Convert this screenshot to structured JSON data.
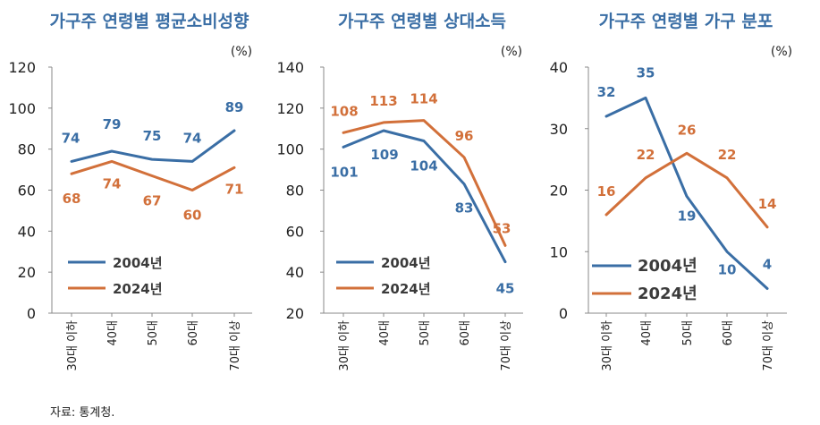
{
  "colors": {
    "series_2004": "#3a6ea5",
    "series_2024": "#d2703a",
    "title": "#3a6ea5",
    "axis": "#888888"
  },
  "source": "자료: 통계청.",
  "chart_data": [
    {
      "type": "line",
      "title": "가구주 연령별 평균소비성향",
      "unit": "(%)",
      "categories": [
        "30대 이하",
        "40대",
        "50대",
        "60대",
        "70대 이상"
      ],
      "ylim": [
        0,
        120
      ],
      "yticks": [
        "0",
        "20",
        "40",
        "60",
        "80",
        "100",
        "120"
      ],
      "grid": false,
      "legend": "lower-left",
      "series": [
        {
          "name": "2004년",
          "values": [
            74,
            79,
            75,
            74,
            89
          ],
          "labels": [
            "74",
            "79",
            "75",
            "74",
            "89"
          ]
        },
        {
          "name": "2024년",
          "values": [
            68,
            74,
            67,
            60,
            71
          ],
          "labels": [
            "68",
            "74",
            "67",
            "60",
            "71"
          ]
        }
      ]
    },
    {
      "type": "line",
      "title": "가구주 연령별 상대소득",
      "unit": "(%)",
      "categories": [
        "30대 이하",
        "40대",
        "50대",
        "60대",
        "70대 이상"
      ],
      "ylim": [
        20,
        140
      ],
      "yticks": [
        "20",
        "40",
        "60",
        "80",
        "100",
        "120",
        "140"
      ],
      "grid": false,
      "legend": "lower-left",
      "series": [
        {
          "name": "2004년",
          "values": [
            101,
            109,
            104,
            83,
            45
          ],
          "labels": [
            "101",
            "109",
            "104",
            "83",
            "45"
          ]
        },
        {
          "name": "2024년",
          "values": [
            108,
            113,
            114,
            96,
            53
          ],
          "labels": [
            "108",
            "113",
            "114",
            "96",
            "53"
          ]
        }
      ]
    },
    {
      "type": "line",
      "title": "가구주 연령별 가구 분포",
      "unit": "(%)",
      "categories": [
        "30대 이하",
        "40대",
        "50대",
        "60대",
        "70대 이상"
      ],
      "ylim": [
        0,
        40
      ],
      "yticks": [
        "0",
        "10",
        "20",
        "30",
        "40"
      ],
      "grid": false,
      "legend": "lower-left",
      "series": [
        {
          "name": "2004년",
          "values": [
            32,
            35,
            19,
            10,
            4
          ],
          "labels": [
            "32",
            "35",
            "19",
            "10",
            "4"
          ]
        },
        {
          "name": "2024년",
          "values": [
            16,
            22,
            26,
            22,
            14
          ],
          "labels": [
            "16",
            "22",
            "26",
            "22",
            "14"
          ]
        }
      ]
    }
  ]
}
